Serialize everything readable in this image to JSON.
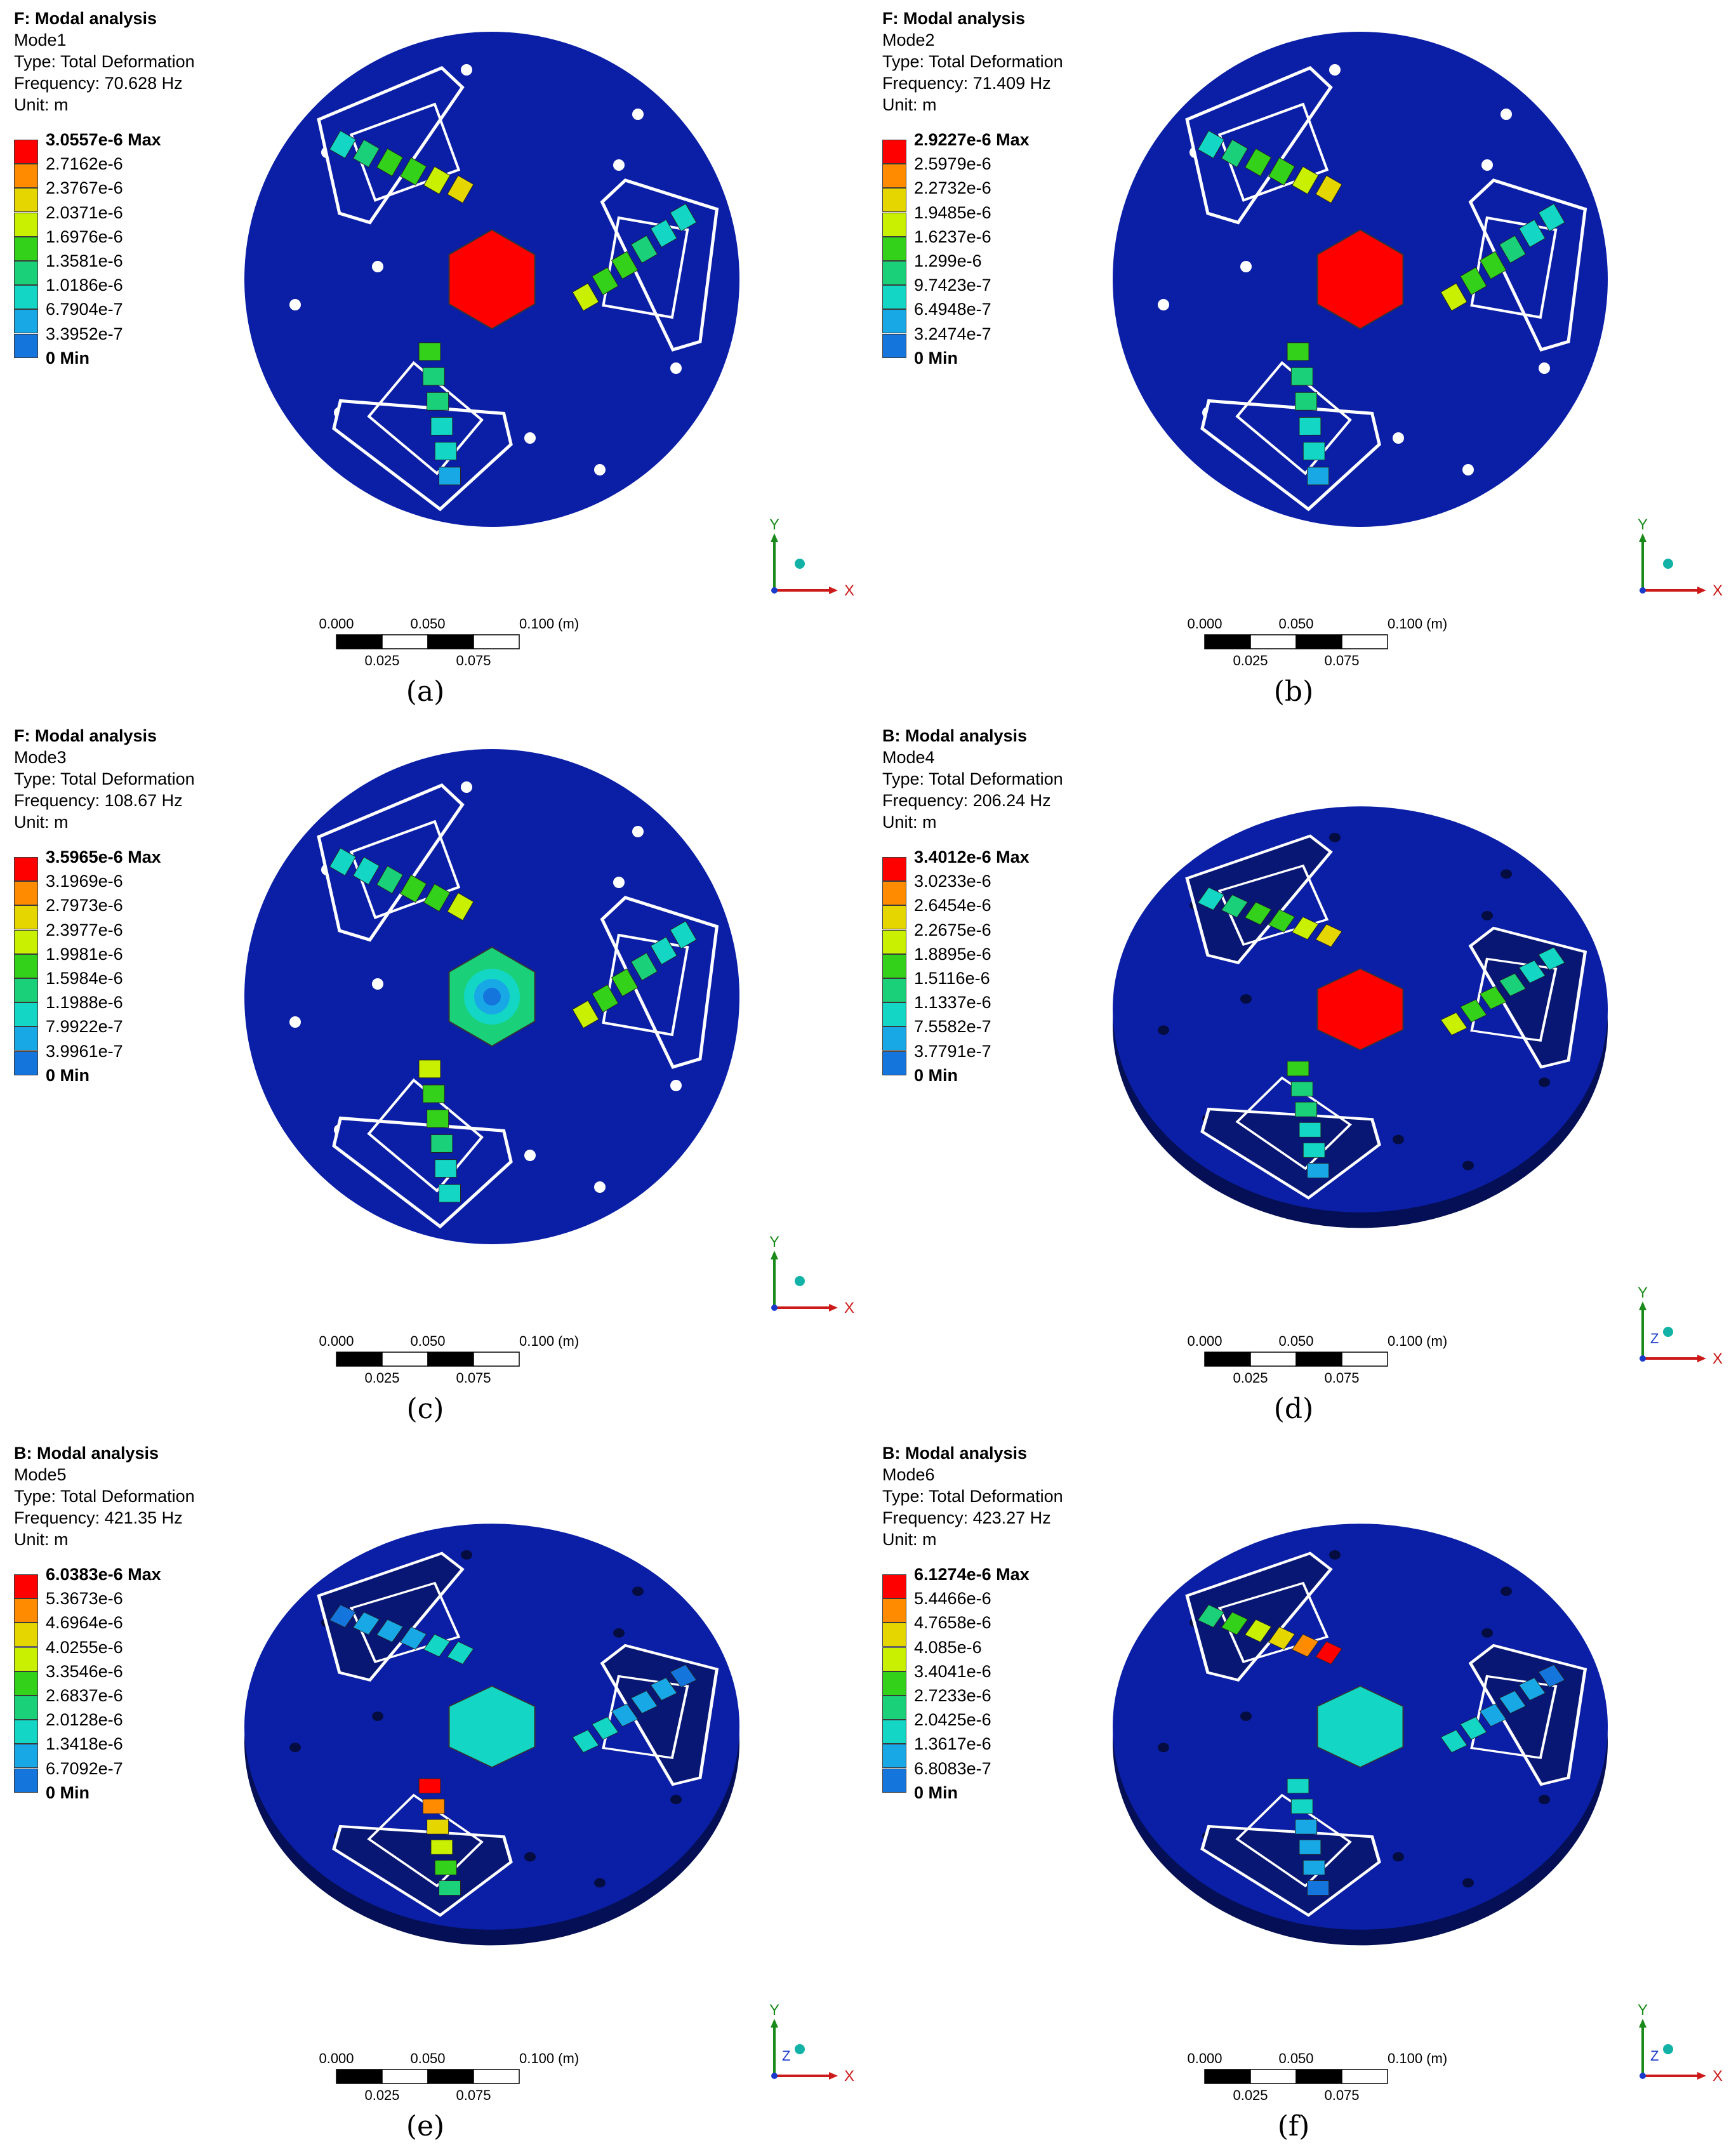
{
  "colors": {
    "plate": "#0b1fa6",
    "plate_dark": "#081773",
    "plate_edge": "#050f55",
    "outline": "#ffffff",
    "scale_bar": [
      "#000000",
      "#ffffff"
    ],
    "axis_x": "#cc1a1a",
    "axis_y": "#1a8a1a",
    "axis_z": "#1a3acc",
    "eye": "#12b3a6",
    "contour_ramp": [
      "#ff0000",
      "#ff8c00",
      "#e6d600",
      "#c8f000",
      "#33d11a",
      "#1ad17a",
      "#13d6c4",
      "#19a8e6",
      "#1475dd",
      "#0000ff"
    ]
  },
  "icons": {
    "triad": "coordinate-triad-icon",
    "eye": "view-direction-sphere-icon"
  },
  "panels": [
    {
      "caption": "(a)",
      "title": "F: Modal analysis",
      "mode": "Mode1",
      "type_line": "Type: Total Deformation",
      "frequency_line": "Frequency: 70.628 Hz",
      "unit_line": "Unit: m",
      "legend": [
        "3.0557e-6 Max",
        "2.7162e-6",
        "2.3767e-6",
        "2.0371e-6",
        "1.6976e-6",
        "1.3581e-6",
        "1.0186e-6",
        "6.7904e-7",
        "3.3952e-7",
        "0 Min"
      ],
      "view": "top",
      "hotspot": "hub",
      "hot_value": 1.0,
      "axes": {
        "x": "X",
        "y": "Y",
        "z": ""
      },
      "scale": {
        "top_ticks": [
          "0.000",
          "0.050",
          "0.100 (m)"
        ],
        "bottom_ticks": [
          "0.025",
          "0.075"
        ]
      }
    },
    {
      "caption": "(b)",
      "title": "F: Modal analysis",
      "mode": "Mode2",
      "type_line": "Type: Total Deformation",
      "frequency_line": "Frequency: 71.409 Hz",
      "unit_line": "Unit: m",
      "legend": [
        "2.9227e-6 Max",
        "2.5979e-6",
        "2.2732e-6",
        "1.9485e-6",
        "1.6237e-6",
        "1.299e-6",
        "9.7423e-7",
        "6.4948e-7",
        "3.2474e-7",
        "0 Min"
      ],
      "view": "top",
      "hotspot": "hub",
      "hot_value": 1.0,
      "axes": {
        "x": "X",
        "y": "Y",
        "z": ""
      },
      "scale": {
        "top_ticks": [
          "0.000",
          "0.050",
          "0.100 (m)"
        ],
        "bottom_ticks": [
          "0.025",
          "0.075"
        ]
      }
    },
    {
      "caption": "(c)",
      "title": "F: Modal analysis",
      "mode": "Mode3",
      "type_line": "Type: Total Deformation",
      "frequency_line": "Frequency: 108.67 Hz",
      "unit_line": "Unit: m",
      "legend": [
        "3.5965e-6 Max",
        "3.1969e-6",
        "2.7973e-6",
        "2.3977e-6",
        "1.9981e-6",
        "1.5984e-6",
        "1.1988e-6",
        "7.9922e-7",
        "3.9961e-7",
        "0 Min"
      ],
      "view": "top",
      "hotspot": "rotation",
      "hot_value": 0.5,
      "axes": {
        "x": "X",
        "y": "Y",
        "z": ""
      },
      "scale": {
        "top_ticks": [
          "0.000",
          "0.050",
          "0.100 (m)"
        ],
        "bottom_ticks": [
          "0.025",
          "0.075"
        ]
      }
    },
    {
      "caption": "(d)",
      "title": "B: Modal analysis",
      "mode": "Mode4",
      "type_line": "Type: Total Deformation",
      "frequency_line": "Frequency: 206.24 Hz",
      "unit_line": "Unit: m",
      "legend": [
        "3.4012e-6 Max",
        "3.0233e-6",
        "2.6454e-6",
        "2.2675e-6",
        "1.8895e-6",
        "1.5116e-6",
        "1.1337e-6",
        "7.5582e-7",
        "3.7791e-7",
        "0 Min"
      ],
      "view": "iso",
      "hotspot": "hub",
      "hot_value": 1.0,
      "axes": {
        "x": "X",
        "y": "Y",
        "z": "Z"
      },
      "scale": {
        "top_ticks": [
          "0.000",
          "0.050",
          "0.100 (m)"
        ],
        "bottom_ticks": [
          "0.025",
          "0.075"
        ]
      }
    },
    {
      "caption": "(e)",
      "title": "B: Modal analysis",
      "mode": "Mode5",
      "type_line": "Type: Total Deformation",
      "frequency_line": "Frequency: 421.35 Hz",
      "unit_line": "Unit: m",
      "legend": [
        "6.0383e-6 Max",
        "5.3673e-6",
        "4.6964e-6",
        "4.0255e-6",
        "3.3546e-6",
        "2.6837e-6",
        "2.0128e-6",
        "1.3418e-6",
        "6.7092e-7",
        "0 Min"
      ],
      "view": "iso",
      "hotspot": "left",
      "hot_value": 0.3,
      "axes": {
        "x": "X",
        "y": "Y",
        "z": "Z"
      },
      "scale": {
        "top_ticks": [
          "0.000",
          "0.050",
          "0.100 (m)"
        ],
        "bottom_ticks": [
          "0.025",
          "0.075"
        ]
      }
    },
    {
      "caption": "(f)",
      "title": "B: Modal analysis",
      "mode": "Mode6",
      "type_line": "Type: Total Deformation",
      "frequency_line": "Frequency: 423.27 Hz",
      "unit_line": "Unit: m",
      "legend": [
        "6.1274e-6 Max",
        "5.4466e-6",
        "4.7658e-6",
        "4.085e-6",
        "3.4041e-6",
        "2.7233e-6",
        "2.0425e-6",
        "1.3617e-6",
        "6.8083e-7",
        "0 Min"
      ],
      "view": "iso",
      "hotspot": "top",
      "hot_value": 0.3,
      "axes": {
        "x": "X",
        "y": "Y",
        "z": "Z"
      },
      "scale": {
        "top_ticks": [
          "0.000",
          "0.050",
          "0.100 (m)"
        ],
        "bottom_ticks": [
          "0.025",
          "0.075"
        ]
      }
    }
  ]
}
